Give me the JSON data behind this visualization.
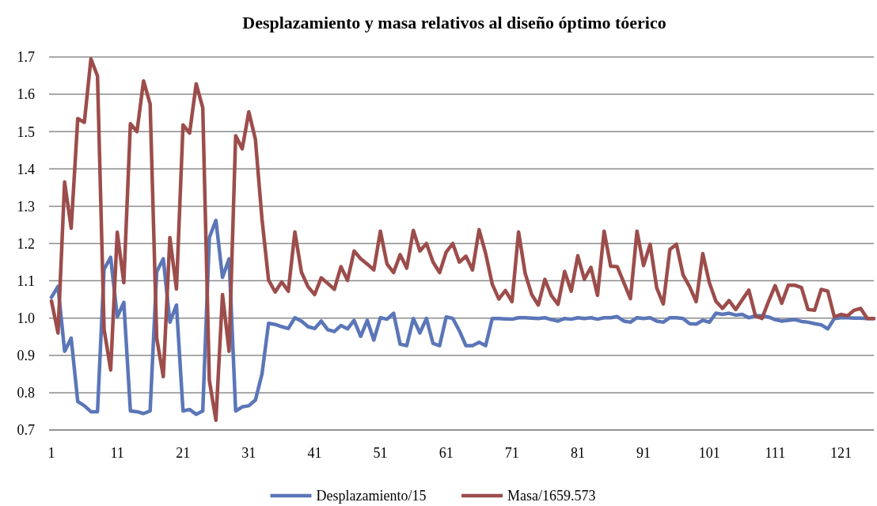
{
  "chart_data": {
    "type": "line",
    "title": "Desplazamiento y masa relativos al diseño óptimo tóerico",
    "x": [
      1,
      2,
      3,
      4,
      5,
      6,
      7,
      8,
      9,
      10,
      11,
      12,
      13,
      14,
      15,
      16,
      17,
      18,
      19,
      20,
      21,
      22,
      23,
      24,
      25,
      26,
      27,
      28,
      29,
      30,
      31,
      32,
      33,
      34,
      35,
      36,
      37,
      38,
      39,
      40,
      41,
      42,
      43,
      44,
      45,
      46,
      47,
      48,
      49,
      50,
      51,
      52,
      53,
      54,
      55,
      56,
      57,
      58,
      59,
      60,
      61,
      62,
      63,
      64,
      65,
      66,
      67,
      68,
      69,
      70,
      71,
      72,
      73,
      74,
      75,
      76,
      77,
      78,
      79,
      80,
      81,
      82,
      83,
      84,
      85,
      86,
      87,
      88,
      89,
      90,
      91,
      92,
      93,
      94,
      95,
      96,
      97,
      98,
      99,
      100,
      101,
      102,
      103,
      104,
      105,
      106,
      107,
      108,
      109,
      110,
      111,
      112,
      113,
      114,
      115,
      116,
      117,
      118,
      119,
      120,
      121,
      122,
      123,
      124,
      125,
      126
    ],
    "xlim": [
      1,
      126
    ],
    "xticks": [
      1,
      11,
      21,
      31,
      41,
      51,
      61,
      71,
      81,
      91,
      101,
      111,
      121
    ],
    "ylim": [
      0.7,
      1.7
    ],
    "yticks": [
      0.7,
      0.8,
      0.9,
      {
        "value": 1,
        "label": "1.0"
      },
      1.1,
      1.2,
      1.3,
      1.4,
      1.5,
      1.6,
      1.7
    ],
    "grid": "y",
    "legend": "bottom",
    "marker": "none",
    "line_style": "solid",
    "series": [
      {
        "name": "Desplazamiento/15",
        "color": "#5b76b8",
        "values": [
          1.056,
          1.085,
          0.911,
          0.946,
          0.776,
          0.765,
          0.749,
          0.749,
          1.131,
          1.163,
          1.003,
          1.042,
          0.751,
          0.749,
          0.744,
          0.751,
          1.124,
          1.159,
          0.989,
          1.035,
          0.751,
          0.755,
          0.742,
          0.751,
          1.216,
          1.262,
          1.109,
          1.159,
          0.751,
          0.762,
          0.765,
          0.78,
          0.85,
          0.986,
          0.983,
          0.977,
          0.972,
          1.001,
          0.992,
          0.977,
          0.972,
          0.992,
          0.969,
          0.964,
          0.98,
          0.971,
          0.994,
          0.951,
          0.994,
          0.941,
          1.001,
          0.997,
          1.013,
          0.93,
          0.926,
          0.999,
          0.96,
          0.999,
          0.932,
          0.926,
          1.003,
          0.999,
          0.966,
          0.926,
          0.926,
          0.935,
          0.926,
          0.999,
          0.999,
          0.998,
          0.997,
          1.001,
          1.001,
          1.0,
          0.999,
          1.001,
          0.996,
          0.992,
          0.999,
          0.997,
          1.001,
          0.999,
          1.001,
          0.997,
          1.001,
          1.001,
          1.004,
          0.992,
          0.989,
          1.001,
          0.999,
          1.001,
          0.992,
          0.989,
          1.001,
          1.001,
          0.999,
          0.985,
          0.984,
          0.994,
          0.989,
          1.013,
          1.01,
          1.013,
          1.008,
          1.01,
          1.001,
          1.006,
          1.006,
          1.003,
          0.996,
          0.992,
          0.994,
          0.996,
          0.991,
          0.989,
          0.985,
          0.982,
          0.971,
          0.999,
          1.001,
          1.001,
          1.0,
          1.0,
          0.999,
          0.999
        ]
      },
      {
        "name": "Masa/1659.573",
        "color": "#9c4d4b",
        "values": [
          1.046,
          0.96,
          1.365,
          1.241,
          1.535,
          1.525,
          1.695,
          1.649,
          0.97,
          0.861,
          1.23,
          1.095,
          1.521,
          1.5,
          1.636,
          1.574,
          0.946,
          0.843,
          1.216,
          1.078,
          1.518,
          1.496,
          1.628,
          1.564,
          0.833,
          0.726,
          1.063,
          0.911,
          1.489,
          1.454,
          1.553,
          1.479,
          1.266,
          1.102,
          1.07,
          1.097,
          1.072,
          1.231,
          1.123,
          1.084,
          1.063,
          1.108,
          1.093,
          1.077,
          1.138,
          1.101,
          1.18,
          1.159,
          1.145,
          1.129,
          1.233,
          1.145,
          1.122,
          1.17,
          1.134,
          1.235,
          1.18,
          1.2,
          1.15,
          1.122,
          1.177,
          1.2,
          1.15,
          1.166,
          1.129,
          1.237,
          1.173,
          1.091,
          1.051,
          1.074,
          1.044,
          1.231,
          1.12,
          1.063,
          1.035,
          1.104,
          1.06,
          1.037,
          1.125,
          1.072,
          1.167,
          1.104,
          1.136,
          1.061,
          1.233,
          1.139,
          1.138,
          1.095,
          1.052,
          1.233,
          1.141,
          1.198,
          1.081,
          1.038,
          1.184,
          1.198,
          1.116,
          1.084,
          1.044,
          1.173,
          1.095,
          1.045,
          1.026,
          1.047,
          1.023,
          1.049,
          1.075,
          1.006,
          0.999,
          1.045,
          1.087,
          1.04,
          1.088,
          1.088,
          1.082,
          1.023,
          1.021,
          1.077,
          1.072,
          1.003,
          1.01,
          1.006,
          1.021,
          1.026,
          0.999,
          0.999
        ]
      }
    ]
  }
}
